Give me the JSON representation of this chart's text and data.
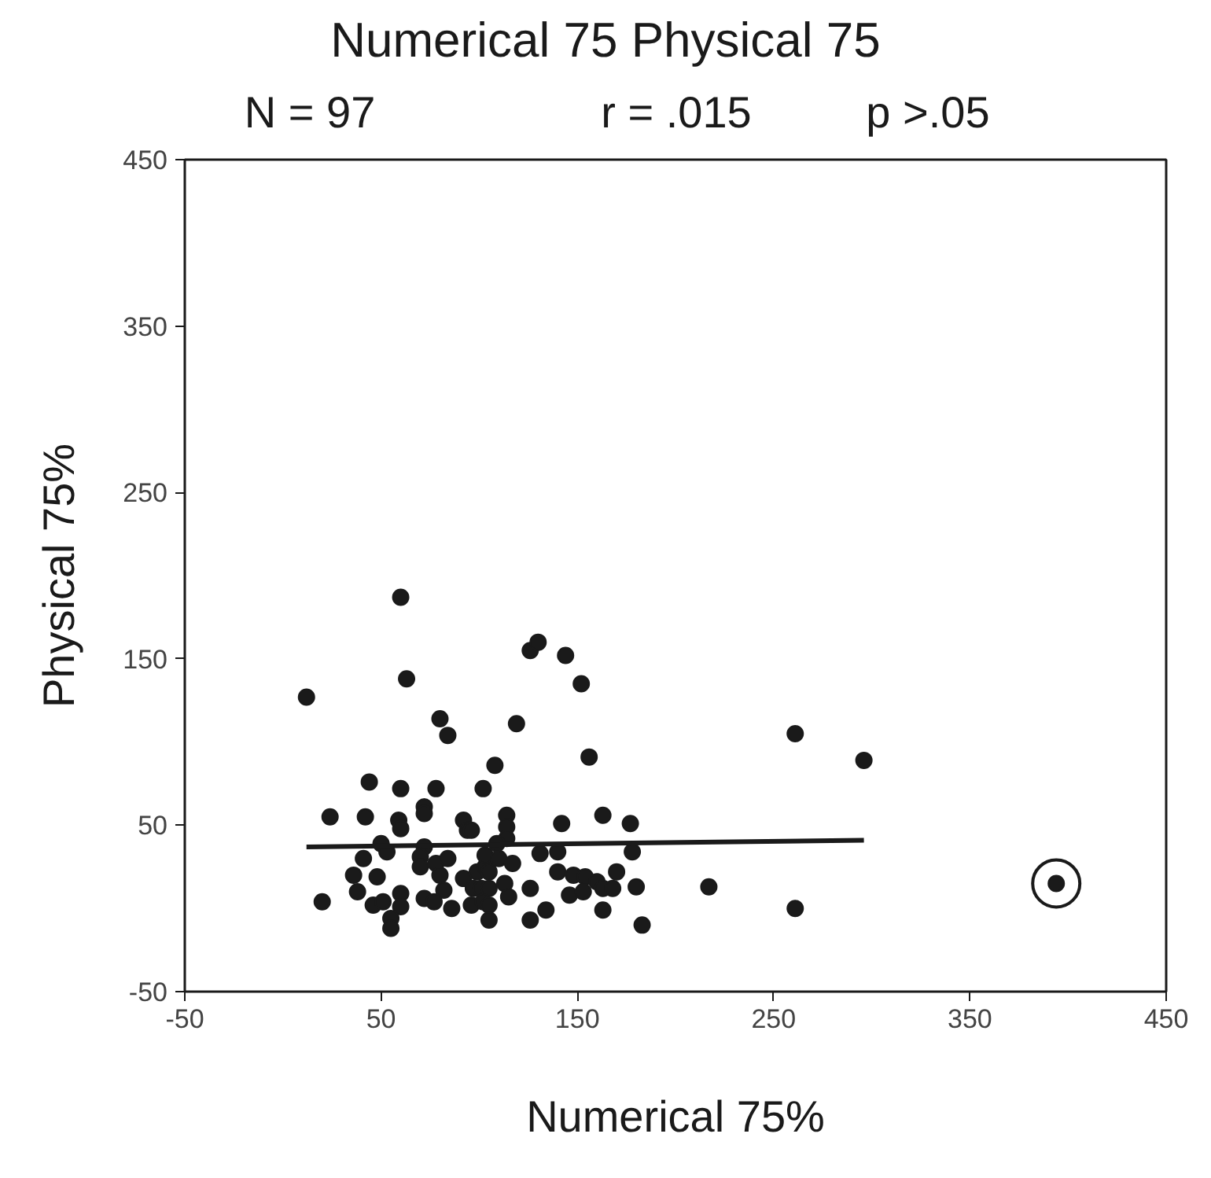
{
  "chart_data": {
    "type": "scatter",
    "title": "Numerical 75 Physical 75",
    "xlabel": "Numerical 75%",
    "ylabel": "Physical 75%",
    "annotations": [
      "N = 97",
      "r = .015",
      "p >.05"
    ],
    "xlim": [
      -50,
      450
    ],
    "ylim": [
      -50,
      450
    ],
    "xticks": [
      -50,
      50,
      150,
      250,
      350,
      450
    ],
    "yticks": [
      -50,
      50,
      150,
      250,
      350,
      450
    ],
    "grid": false,
    "marker": "circle",
    "series": [
      {
        "color": "#1a1a1a",
        "x": [
          60,
          12,
          63,
          80,
          84,
          44,
          60,
          78,
          102,
          108,
          119,
          126,
          130,
          24,
          42,
          59,
          60,
          72,
          72,
          92,
          94,
          96,
          114,
          114,
          114,
          50,
          53,
          41,
          36,
          48,
          38,
          20,
          46,
          51,
          60,
          60,
          55,
          55,
          72,
          70,
          70,
          78,
          80,
          84,
          82,
          72,
          77,
          86,
          92,
          96,
          99,
          103,
          103,
          105,
          97,
          101,
          105,
          102,
          105,
          105,
          110,
          109,
          113,
          115,
          117,
          126,
          126,
          131,
          144,
          152,
          156,
          261,
          296,
          142,
          163,
          177,
          140,
          178,
          140,
          148,
          154,
          160,
          163,
          168,
          170,
          180,
          146,
          153,
          217,
          134,
          163,
          183,
          261
        ],
        "values": [
          187,
          127,
          138,
          114,
          104,
          76,
          72,
          72,
          72,
          86,
          111,
          155,
          160,
          55,
          55,
          53,
          48,
          61,
          57,
          53,
          47,
          47,
          56,
          49,
          42,
          39,
          34,
          30,
          20,
          19,
          10,
          4,
          2,
          4,
          9,
          1,
          -6,
          -12,
          37,
          31,
          25,
          27,
          20,
          30,
          11,
          6,
          4,
          0,
          18,
          2,
          22,
          25,
          32,
          22,
          12,
          12,
          12,
          4,
          2,
          -7,
          30,
          39,
          15,
          7,
          27,
          12,
          -7,
          33,
          152,
          135,
          91,
          105,
          89,
          51,
          56,
          51,
          34,
          34,
          22,
          20,
          19,
          16,
          12,
          12,
          22,
          13,
          8,
          10,
          13,
          -1,
          -1,
          -10,
          0
        ]
      },
      {
        "color": "#1a1a1a",
        "x": [
          394
        ],
        "values": [
          15
        ]
      },
      {
        "type": "line",
        "color": "#1a1a1a",
        "marker": "none",
        "x": [
          12,
          296
        ],
        "values": [
          37,
          41
        ]
      }
    ]
  }
}
